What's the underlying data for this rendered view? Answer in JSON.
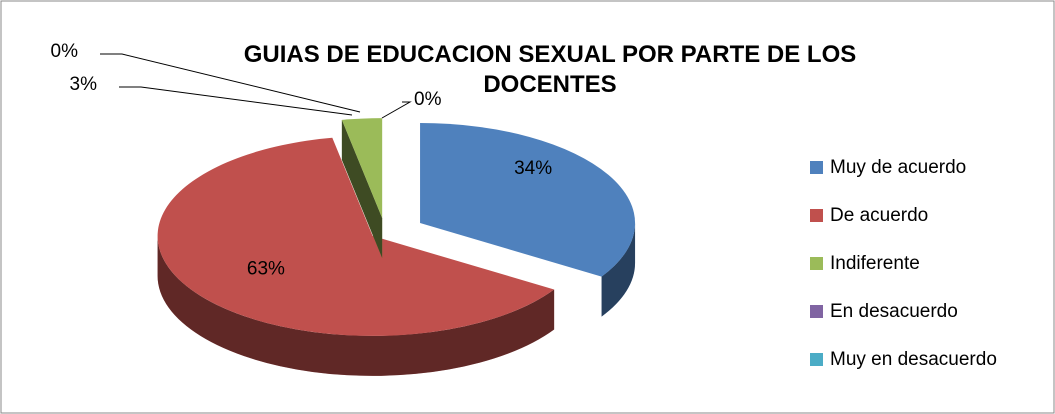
{
  "chart_data": {
    "type": "pie3d",
    "title": "GUIAS DE EDUCACION SEXUAL POR PARTE DE LOS DOCENTES",
    "categories": [
      "Muy de acuerdo",
      "De acuerdo",
      "Indiferente",
      "En desacuerdo",
      "Muy en desacuerdo"
    ],
    "values": [
      34,
      63,
      3,
      0,
      0
    ],
    "value_labels": [
      "34%",
      "63%",
      "3%",
      "0%",
      "0%"
    ],
    "colors": [
      "#4f81bd",
      "#c0504d",
      "#9bbb59",
      "#8064a2",
      "#4bacc6"
    ],
    "legend": "right"
  }
}
